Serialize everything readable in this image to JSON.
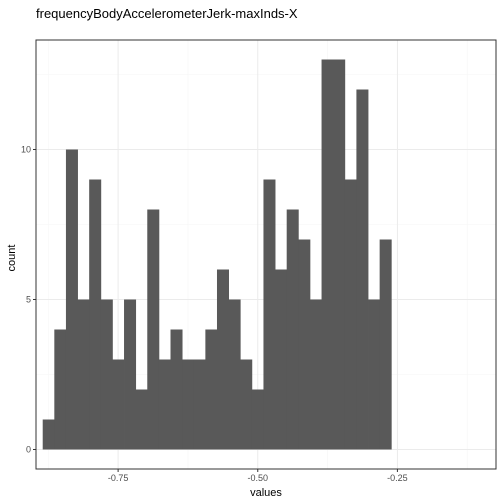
{
  "chart_data": {
    "type": "bar",
    "title": "frequencyBodyAccelerometerJerk-maxInds-X",
    "xlabel": "values",
    "ylabel": "count",
    "bin_width": 0.0208,
    "bin_starts": [
      -0.885,
      -0.8642,
      -0.8434,
      -0.8226,
      -0.8018,
      -0.781,
      -0.7602,
      -0.7394,
      -0.7186,
      -0.6978,
      -0.677,
      -0.6562,
      -0.6354,
      -0.6146,
      -0.5938,
      -0.573,
      -0.5522,
      -0.5314,
      -0.5106,
      -0.4898,
      -0.469,
      -0.4482,
      -0.4274,
      -0.4066,
      -0.3858,
      -0.365,
      -0.3442,
      -0.3234,
      -0.3026,
      -0.2818,
      -0.261,
      -0.2402,
      -0.2194,
      -0.1986,
      -0.1778,
      -0.157,
      -0.1362,
      -0.1154
    ],
    "counts": [
      1,
      4,
      10,
      5,
      9,
      5,
      3,
      5,
      2,
      8,
      3,
      4,
      3,
      3,
      4,
      6,
      5,
      3,
      2,
      9,
      6,
      8,
      7,
      5,
      13,
      13,
      9,
      12,
      5,
      7,
      0,
      0,
      0,
      0,
      0,
      0,
      0,
      0
    ],
    "xlim": [
      -0.897,
      -0.0735
    ],
    "ylim": [
      -0.65,
      13.65
    ],
    "x_ticks": [
      -0.75,
      -0.5,
      -0.25
    ],
    "x_tick_labels": [
      "-0.75",
      "-0.50",
      "-0.25"
    ],
    "y_ticks": [
      0,
      5,
      10
    ],
    "y_tick_labels": [
      "0",
      "5",
      "10"
    ],
    "grid": true,
    "bar_color": "#595959",
    "panel_border_color": "#333333",
    "grid_major_color": "#ebebeb",
    "grid_minor_color": "#f5f5f5"
  }
}
